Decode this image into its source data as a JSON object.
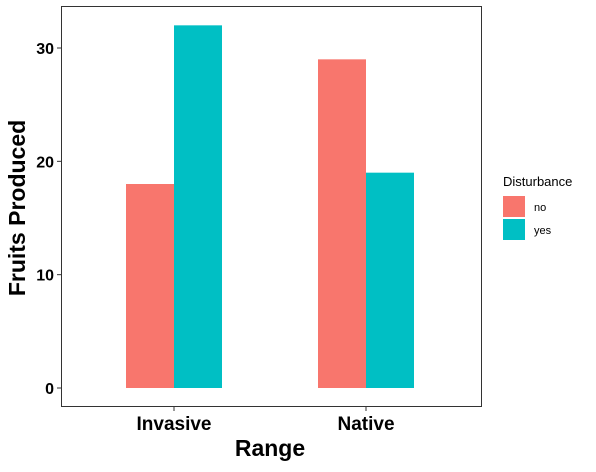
{
  "chart_data": {
    "type": "bar",
    "title": "",
    "xlabel": "Range",
    "ylabel": "Fruits Produced",
    "categories": [
      "Invasive",
      "Native"
    ],
    "series": [
      {
        "name": "no",
        "values": [
          18,
          29
        ]
      },
      {
        "name": "yes",
        "values": [
          32,
          19
        ]
      }
    ],
    "ylim": [
      0,
      33.6
    ],
    "yticks": [
      0,
      10,
      20,
      30
    ],
    "ytick_labels": [
      "0",
      "10",
      "20",
      "30"
    ],
    "grid": false,
    "legend": {
      "title": "Disturbance",
      "position": "right"
    }
  },
  "colors": {
    "no": "#F8766D",
    "yes": "#00BFC4"
  }
}
